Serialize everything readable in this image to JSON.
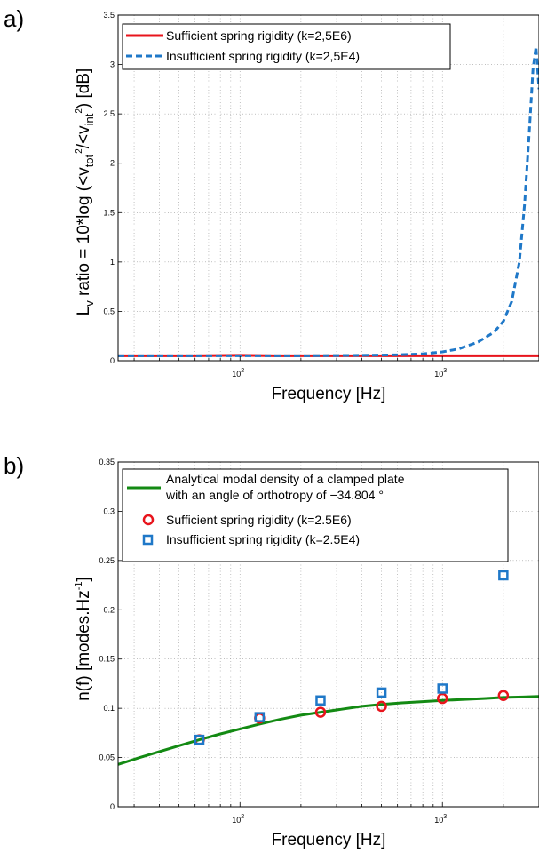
{
  "chart_data": [
    {
      "panel": "a)",
      "type": "line",
      "xlabel": "Frequency [Hz]",
      "ylabel_parts": {
        "main": "L",
        "sub_v": "v",
        "ratio": " ratio = 10*log (<v",
        "sub_tot": "tot",
        "sup_2a": "2",
        "mid": "/<v",
        "sub_int": "int",
        "sup_2b": "2",
        "end": ") [dB]"
      },
      "xscale": "log",
      "xlim": [
        25,
        3000
      ],
      "ylim": [
        0,
        3.5
      ],
      "yticks": [
        "0",
        "0.5",
        "1",
        "1.5",
        "2",
        "2.5",
        "3",
        "3.5"
      ],
      "xticks": [
        {
          "base": "10",
          "exp": "2",
          "value": 100
        },
        {
          "base": "10",
          "exp": "3",
          "value": 1000
        }
      ],
      "grid": true,
      "legend_position": "top-left",
      "series": [
        {
          "name": "Sufficient spring rigidity (k=2,5E6)",
          "color": "#e8141c",
          "style": "solid",
          "x": [
            25,
            40,
            60,
            100,
            150,
            250,
            400,
            600,
            1000,
            1500,
            2000,
            2500,
            3000
          ],
          "y": [
            0.05,
            0.05,
            0.05,
            0.055,
            0.05,
            0.05,
            0.05,
            0.05,
            0.05,
            0.05,
            0.05,
            0.05,
            0.05
          ]
        },
        {
          "name": "Insufficient spring rigidity (k=2,5E4)",
          "color": "#1f78c8",
          "style": "dashed",
          "x": [
            25,
            50,
            100,
            200,
            400,
            600,
            800,
            1000,
            1200,
            1500,
            1800,
            2000,
            2200,
            2400,
            2550,
            2700,
            2800,
            2900,
            3000
          ],
          "y": [
            0.05,
            0.05,
            0.05,
            0.05,
            0.055,
            0.06,
            0.07,
            0.09,
            0.12,
            0.19,
            0.29,
            0.4,
            0.6,
            1.0,
            1.6,
            2.4,
            2.95,
            3.18,
            2.75
          ]
        }
      ]
    },
    {
      "panel": "b)",
      "type": "scatter",
      "xlabel": "Frequency [Hz]",
      "ylabel_parts": {
        "main": "n(f) [modes.Hz",
        "sup": "-1",
        "end": "]"
      },
      "xscale": "log",
      "xlim": [
        25,
        3000
      ],
      "ylim": [
        0,
        0.35
      ],
      "yticks": [
        "0",
        "0.05",
        "0.1",
        "0.15",
        "0.2",
        "0.25",
        "0.3",
        "0.35"
      ],
      "xticks": [
        {
          "base": "10",
          "exp": "2",
          "value": 100
        },
        {
          "base": "10",
          "exp": "3",
          "value": 1000
        }
      ],
      "grid": true,
      "legend_position": "top-left",
      "series": [
        {
          "name_lines": [
            "Analytical modal density of a clamped plate",
            "with an angle of orthotropy of −34.804 °"
          ],
          "color": "#138a13",
          "style": "line",
          "x": [
            25,
            32,
            40,
            50,
            63,
            80,
            100,
            125,
            160,
            200,
            250,
            315,
            400,
            500,
            630,
            800,
            1000,
            1250,
            1600,
            2000,
            2500,
            3000
          ],
          "y": [
            0.043,
            0.05,
            0.056,
            0.062,
            0.068,
            0.074,
            0.079,
            0.084,
            0.089,
            0.093,
            0.096,
            0.099,
            0.102,
            0.104,
            0.1055,
            0.1068,
            0.108,
            0.109,
            0.11,
            0.111,
            0.1115,
            0.112
          ]
        },
        {
          "name": "Sufficient spring rigidity (k=2.5E6)",
          "color": "#e8141c",
          "style": "circle",
          "x": [
            63,
            125,
            250,
            500,
            1000,
            2000
          ],
          "y": [
            0.068,
            0.09,
            0.096,
            0.102,
            0.11,
            0.113
          ]
        },
        {
          "name": "Insufficient spring rigidity (k=2.5E4)",
          "color": "#1f78c8",
          "style": "square",
          "x": [
            63,
            125,
            250,
            500,
            1000,
            2000
          ],
          "y": [
            0.068,
            0.091,
            0.108,
            0.116,
            0.12,
            0.235
          ]
        }
      ]
    }
  ]
}
